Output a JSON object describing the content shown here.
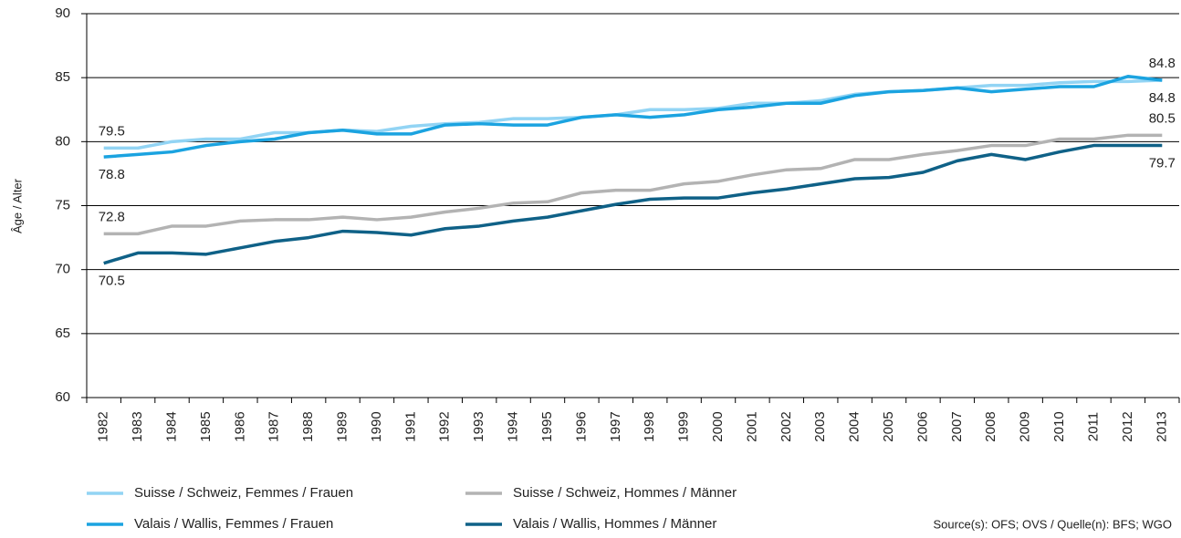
{
  "chart_data": {
    "type": "line",
    "y_label": "Âge / Alter",
    "source": "Source(s): OFS; OVS / Quelle(n): BFS; WGO",
    "categories": [
      "1982",
      "1983",
      "1984",
      "1985",
      "1986",
      "1987",
      "1988",
      "1989",
      "1990",
      "1991",
      "1992",
      "1993",
      "1994",
      "1995",
      "1996",
      "1997",
      "1998",
      "1999",
      "2000",
      "2001",
      "2002",
      "2003",
      "2004",
      "2005",
      "2006",
      "2007",
      "2008",
      "2009",
      "2010",
      "2011",
      "2012",
      "2013"
    ],
    "ylim": [
      60,
      90
    ],
    "yticks": [
      60,
      65,
      70,
      75,
      80,
      85,
      90
    ],
    "grid": true,
    "series": [
      {
        "name": "Suisse / Schweiz, Femmes / Frauen",
        "color": "#92d4f4",
        "values": [
          79.5,
          79.5,
          80.0,
          80.2,
          80.2,
          80.7,
          80.7,
          80.9,
          80.8,
          81.2,
          81.4,
          81.5,
          81.8,
          81.8,
          81.9,
          82.1,
          82.5,
          82.5,
          82.6,
          83.0,
          83.0,
          83.2,
          83.7,
          83.9,
          84.0,
          84.2,
          84.4,
          84.4,
          84.6,
          84.7,
          84.7,
          84.8
        ]
      },
      {
        "name": "Valais / Wallis, Femmes / Frauen",
        "color": "#1ba3e0",
        "values": [
          78.8,
          79.0,
          79.2,
          79.7,
          80.0,
          80.2,
          80.7,
          80.9,
          80.6,
          80.6,
          81.3,
          81.4,
          81.3,
          81.3,
          81.9,
          82.1,
          81.9,
          82.1,
          82.5,
          82.7,
          83.0,
          83.0,
          83.6,
          83.9,
          84.0,
          84.2,
          83.9,
          84.1,
          84.3,
          84.3,
          85.1,
          84.8
        ]
      },
      {
        "name": "Suisse / Schweiz, Hommes / Männer",
        "color": "#b3b3b3",
        "values": [
          72.8,
          72.8,
          73.4,
          73.4,
          73.8,
          73.9,
          73.9,
          74.1,
          73.9,
          74.1,
          74.5,
          74.8,
          75.2,
          75.3,
          76.0,
          76.2,
          76.2,
          76.7,
          76.9,
          77.4,
          77.8,
          77.9,
          78.6,
          78.6,
          79.0,
          79.3,
          79.7,
          79.7,
          80.2,
          80.2,
          80.5,
          80.5
        ]
      },
      {
        "name": "Valais / Wallis, Hommes / Männer",
        "color": "#0f6187",
        "values": [
          70.5,
          71.3,
          71.3,
          71.2,
          71.7,
          72.2,
          72.5,
          73.0,
          72.9,
          72.7,
          73.2,
          73.4,
          73.8,
          74.1,
          74.6,
          75.1,
          75.5,
          75.6,
          75.6,
          76.0,
          76.3,
          76.7,
          77.1,
          77.2,
          77.6,
          78.5,
          79.0,
          78.6,
          79.2,
          79.7,
          79.7,
          79.7
        ]
      }
    ]
  }
}
